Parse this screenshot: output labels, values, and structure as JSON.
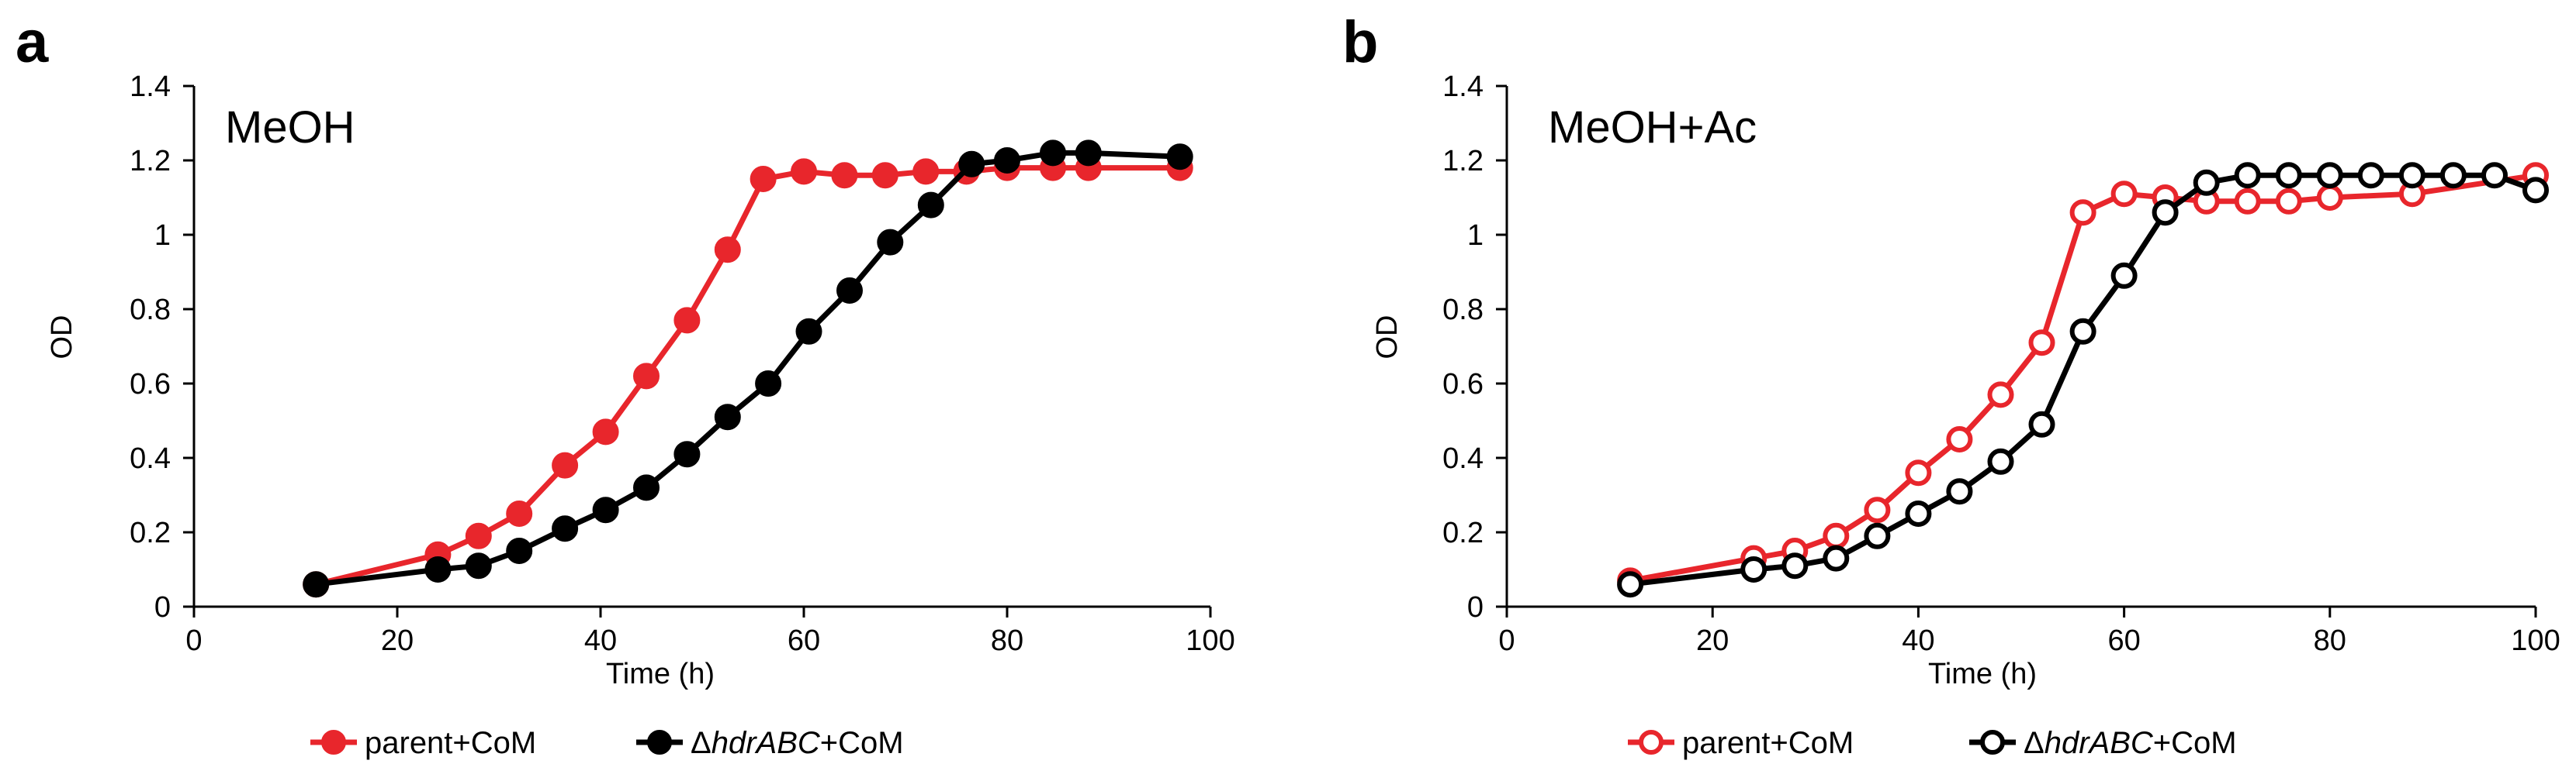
{
  "chart_data": [
    {
      "panel": "a",
      "type": "line",
      "annotation": "MeOH",
      "xlabel": "Time (h)",
      "ylabel": "OD",
      "xlim": [
        0,
        100
      ],
      "ylim": [
        0,
        1.4
      ],
      "xticks": [
        "0",
        "20",
        "40",
        "60",
        "80",
        "100"
      ],
      "yticks": [
        "0",
        "0.2",
        "0.4",
        "0.6",
        "0.8",
        "1",
        "1.2",
        "1.4"
      ],
      "series": [
        {
          "name": "parent+CoM",
          "color": "#e8262c",
          "marker": "filled",
          "x": [
            12,
            24,
            28,
            32,
            36.5,
            40.5,
            44.5,
            48.5,
            52.5,
            56,
            60,
            64,
            68,
            72,
            76,
            80,
            84.5,
            88,
            97
          ],
          "y": [
            0.06,
            0.14,
            0.19,
            0.25,
            0.38,
            0.47,
            0.62,
            0.77,
            0.96,
            1.15,
            1.17,
            1.16,
            1.16,
            1.17,
            1.17,
            1.18,
            1.18,
            1.18,
            1.18
          ]
        },
        {
          "name": "ΔhdrABC+CoM",
          "color": "#000000",
          "marker": "filled",
          "x": [
            12,
            24,
            28,
            32,
            36.5,
            40.5,
            44.5,
            48.5,
            52.5,
            56.5,
            60.5,
            64.5,
            68.5,
            72.5,
            76.5,
            80,
            84.5,
            88,
            97
          ],
          "y": [
            0.06,
            0.1,
            0.11,
            0.15,
            0.21,
            0.26,
            0.32,
            0.41,
            0.51,
            0.6,
            0.74,
            0.85,
            0.98,
            1.08,
            1.19,
            1.2,
            1.22,
            1.22,
            1.21
          ]
        }
      ]
    },
    {
      "panel": "b",
      "type": "line",
      "annotation": "MeOH+Ac",
      "xlabel": "Time (h)",
      "ylabel": "OD",
      "xlim": [
        0,
        100
      ],
      "ylim": [
        0,
        1.4
      ],
      "xticks": [
        "0",
        "20",
        "40",
        "60",
        "80",
        "100"
      ],
      "yticks": [
        "0",
        "0.2",
        "0.4",
        "0.6",
        "0.8",
        "1",
        "1.2",
        "1.4"
      ],
      "series": [
        {
          "name": "parent+CoM",
          "color": "#e8262c",
          "marker": "open",
          "x": [
            12,
            24,
            28,
            32,
            36,
            40,
            44,
            48,
            52,
            56,
            60,
            64,
            68,
            72,
            76,
            80,
            88,
            100
          ],
          "y": [
            0.07,
            0.13,
            0.15,
            0.19,
            0.26,
            0.36,
            0.45,
            0.57,
            0.71,
            1.06,
            1.11,
            1.1,
            1.09,
            1.09,
            1.09,
            1.1,
            1.11,
            1.16
          ]
        },
        {
          "name": "ΔhdrABC+CoM",
          "color": "#000000",
          "marker": "open",
          "x": [
            12,
            24,
            28,
            32,
            36,
            40,
            44,
            48,
            52,
            56,
            60,
            64,
            68,
            72,
            76,
            80,
            84,
            88,
            92,
            96,
            100
          ],
          "y": [
            0.06,
            0.1,
            0.11,
            0.13,
            0.19,
            0.25,
            0.31,
            0.39,
            0.49,
            0.74,
            0.89,
            1.06,
            1.14,
            1.16,
            1.16,
            1.16,
            1.16,
            1.16,
            1.16,
            1.16,
            1.12
          ]
        }
      ]
    }
  ],
  "legend": [
    {
      "name": "parent+CoM",
      "prefix": "",
      "italic": "",
      "suffix": "parent+CoM",
      "color": "#e8262c"
    },
    {
      "name": "ΔhdrABC+CoM",
      "prefix": "Δ",
      "italic": "hdrABC",
      "suffix": "+CoM",
      "color": "#000000"
    }
  ]
}
